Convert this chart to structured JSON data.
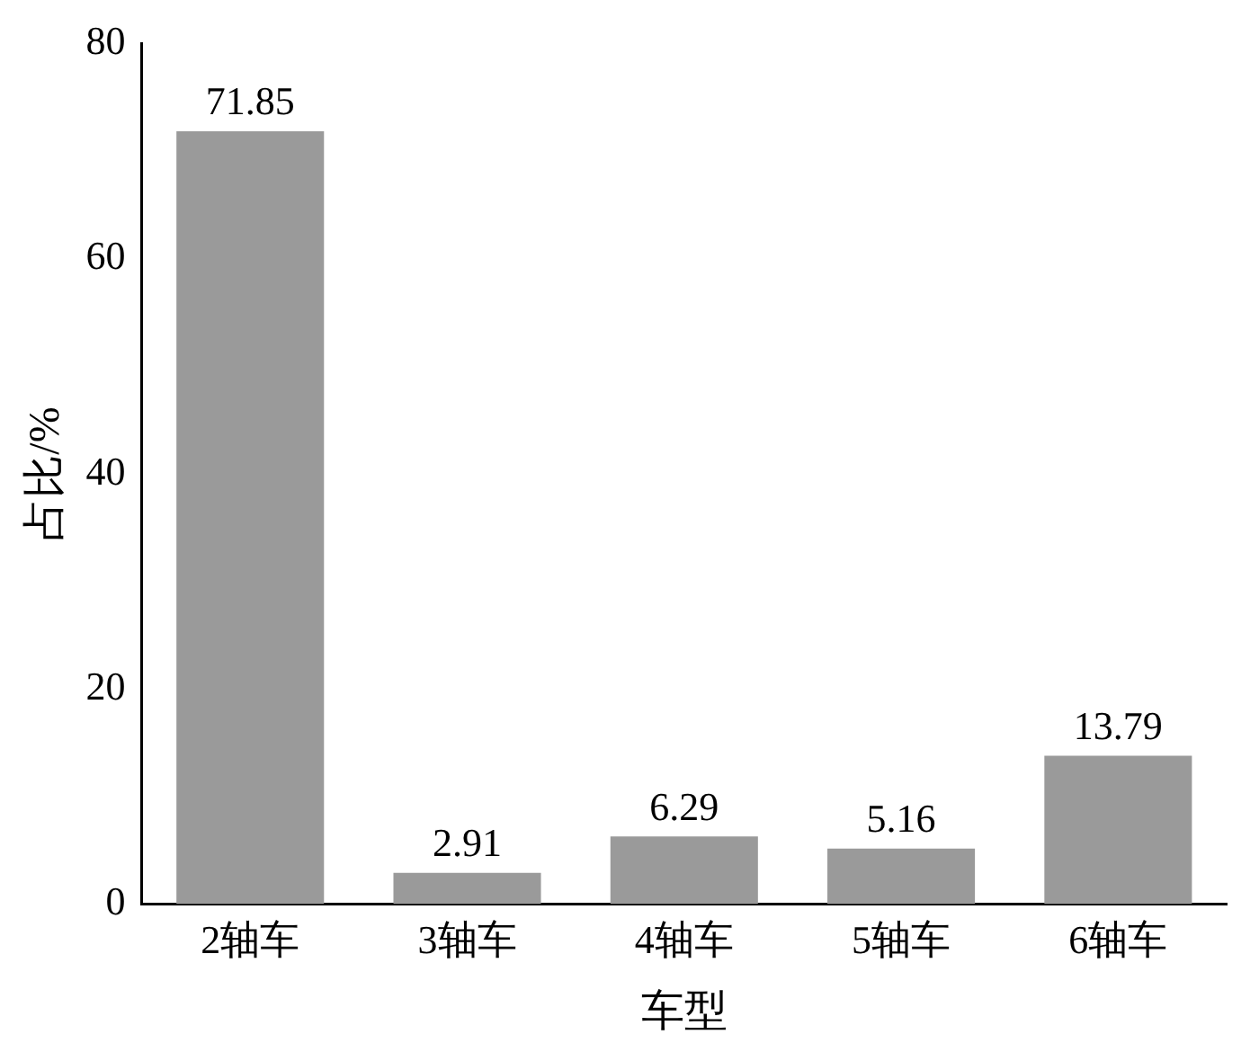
{
  "chart_data": {
    "type": "bar",
    "xlabel": "车型",
    "ylabel": "占比/%",
    "categories": [
      "2轴车",
      "3轴车",
      "4轴车",
      "5轴车",
      "6轴车"
    ],
    "values": [
      71.85,
      2.91,
      6.29,
      5.16,
      13.79
    ],
    "color": "#9a9a9a",
    "ylim": [
      0,
      80
    ],
    "yticks": [
      0,
      20,
      40,
      60,
      80
    ],
    "grid": false,
    "legend": false,
    "data_labels": true
  }
}
